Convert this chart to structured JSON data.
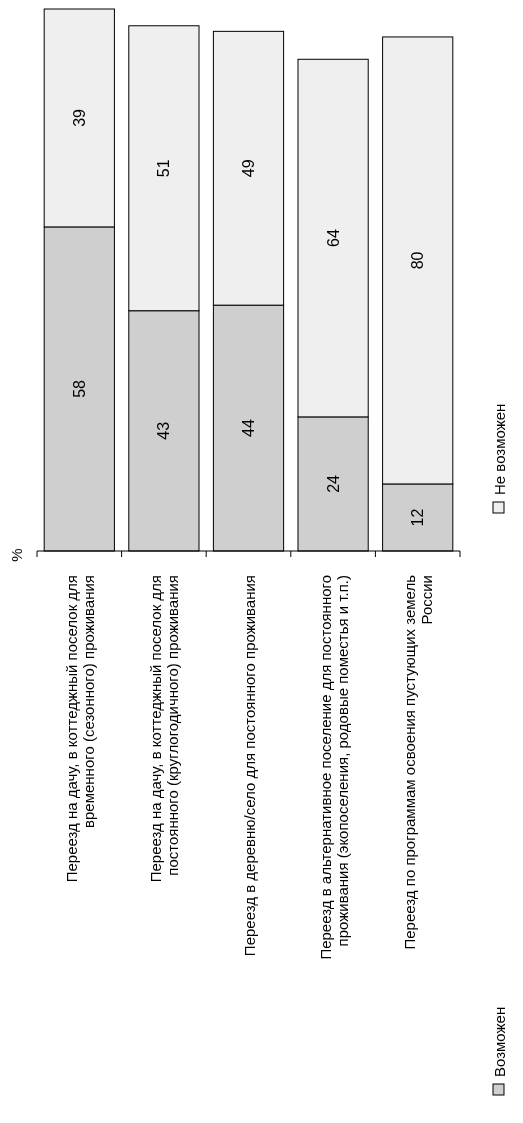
{
  "chart_data": {
    "type": "bar",
    "stacked": true,
    "ylabel": "%",
    "categories": [
      "Переезд на дачу, в коттеджный поселок для временного (сезонного) проживания",
      "Переезд на дачу, в коттеджный поселок для постоянного (круглогодичного) проживания",
      "Переезд в деревню/село для постоянного проживания",
      "Переезд в альтернативное поселение для постоянного проживания (экопоселения, родовые поместья и т.п.)",
      "Переезд по программам освоения пустующих земель России"
    ],
    "series": [
      {
        "name": "Возможен",
        "color": "#cfcfcf",
        "values": [
          58,
          43,
          44,
          24,
          12
        ]
      },
      {
        "name": "Не возможен",
        "color": "#efefef",
        "values": [
          39,
          51,
          49,
          64,
          80
        ]
      }
    ],
    "data_labels": true,
    "legend": "bottom",
    "tick_labels": "x"
  }
}
